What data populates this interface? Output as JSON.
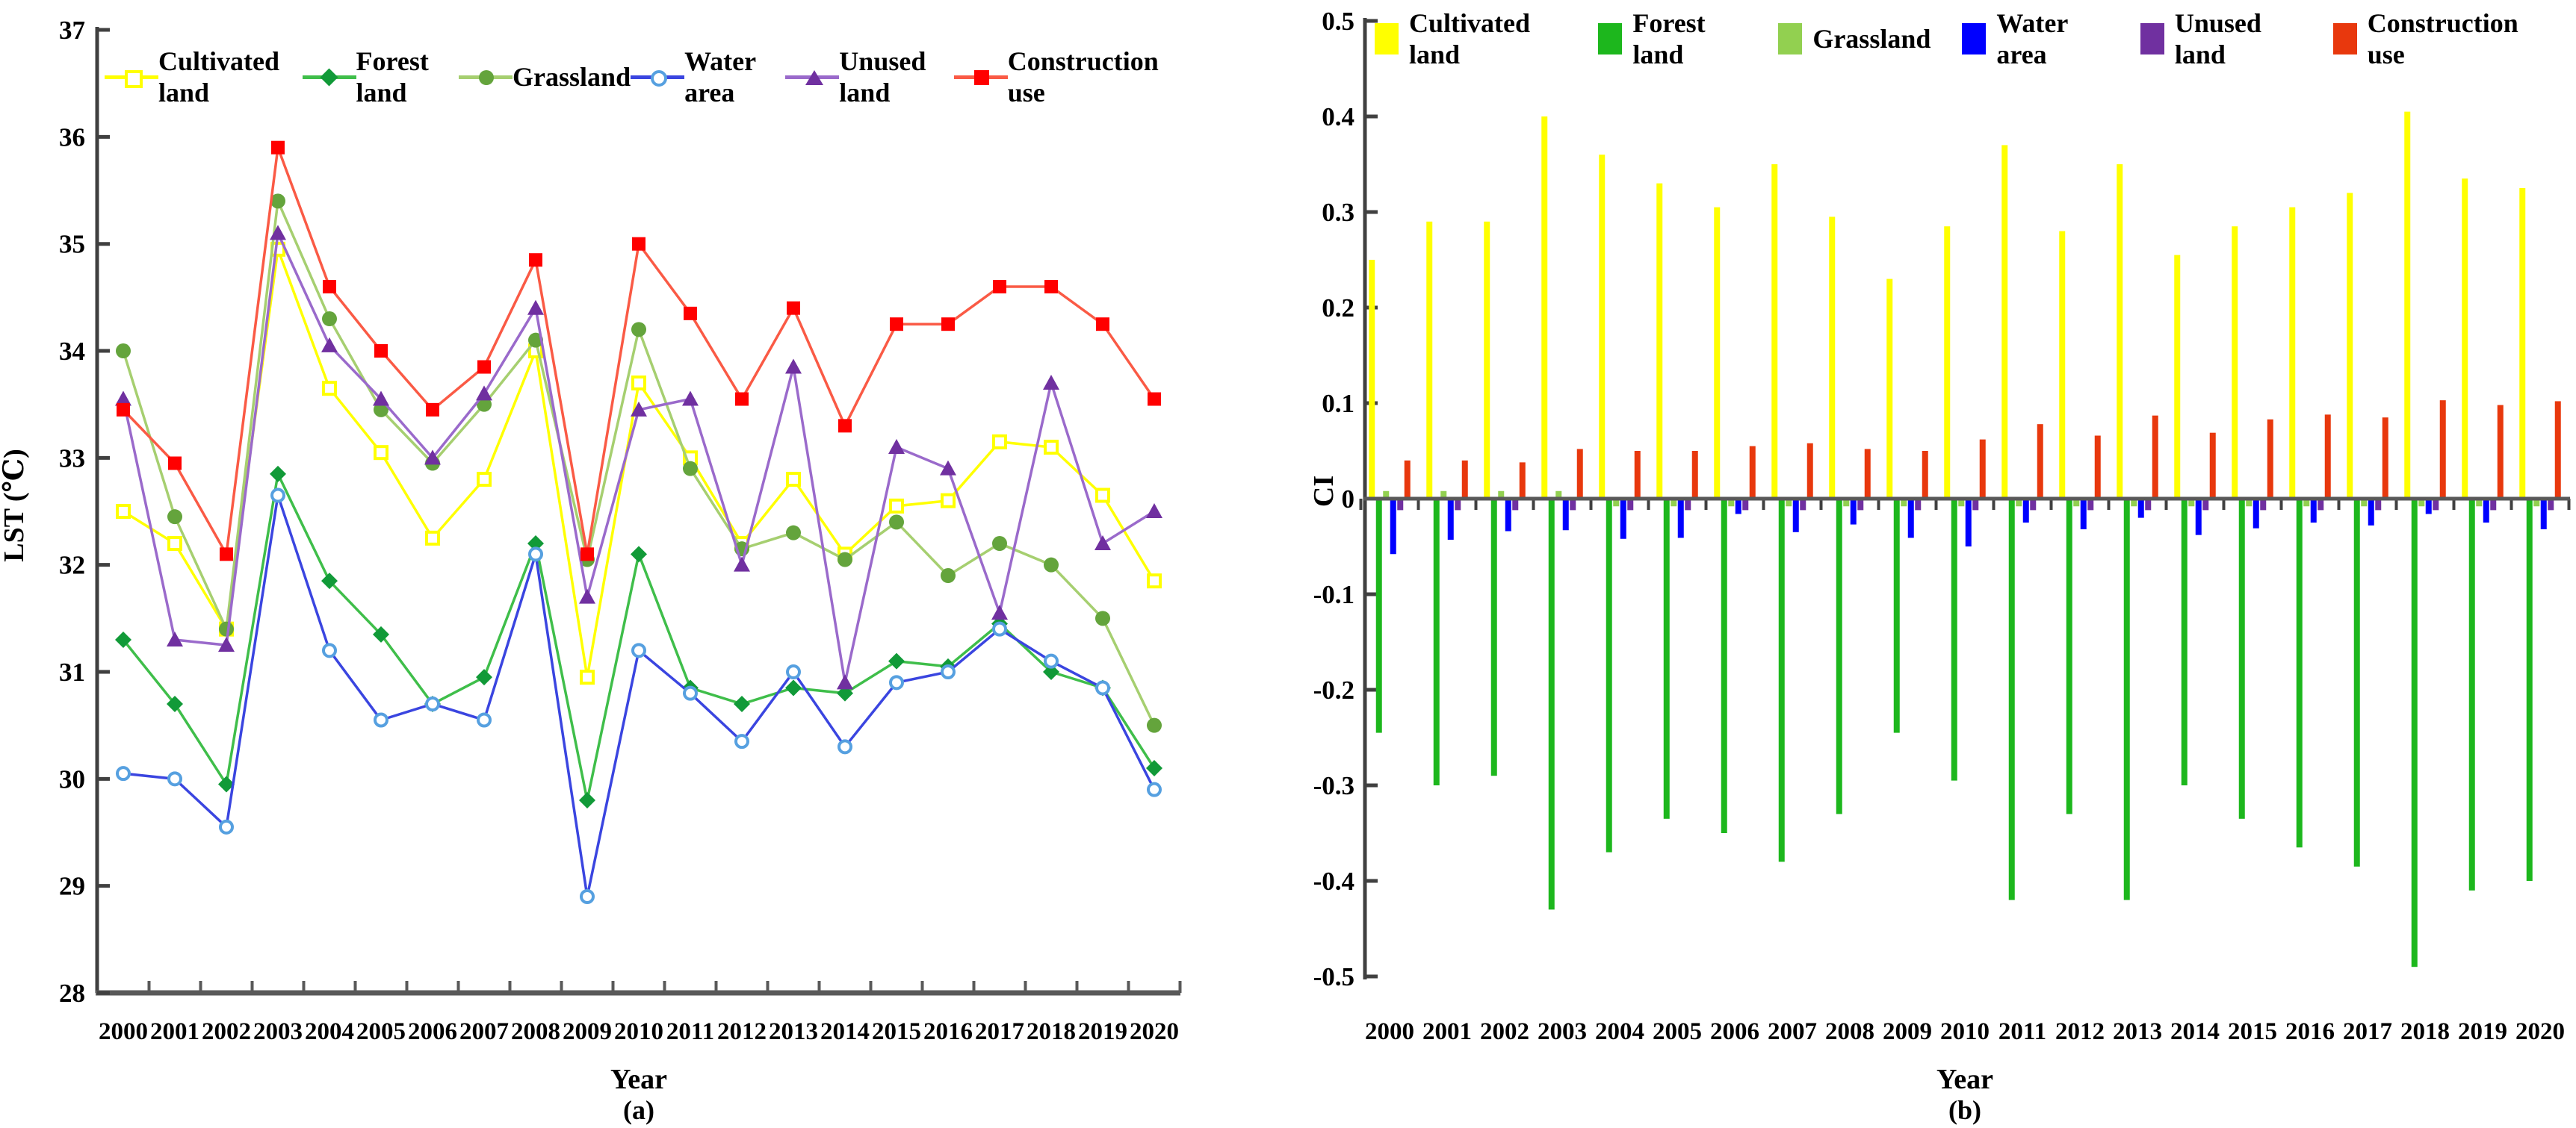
{
  "panels": {
    "a": {
      "ylabel": "LST (℃)",
      "xlabel": "Year",
      "caption": "(a)"
    },
    "b": {
      "ylabel": "CI",
      "xlabel": "Year",
      "caption": "(b)"
    }
  },
  "chart_data": [
    {
      "type": "line",
      "title": "",
      "xlabel": "Year",
      "ylabel": "LST (℃)",
      "caption": "(a)",
      "x": [
        2000,
        2001,
        2002,
        2003,
        2004,
        2005,
        2006,
        2007,
        2008,
        2009,
        2010,
        2011,
        2012,
        2013,
        2014,
        2015,
        2016,
        2017,
        2018,
        2019,
        2020
      ],
      "ylim": [
        28,
        37
      ],
      "yticks": [
        28,
        29,
        30,
        31,
        32,
        33,
        34,
        35,
        36,
        37
      ],
      "grid": false,
      "legend_position": "top",
      "series": [
        {
          "name": "Cultivated land",
          "marker": "open-square",
          "line_color": "#FFFF00",
          "marker_color": "#FFFF00",
          "values": [
            32.5,
            32.2,
            31.4,
            34.95,
            33.65,
            33.05,
            32.25,
            32.8,
            34.0,
            30.95,
            33.7,
            33.0,
            32.2,
            32.8,
            32.1,
            32.55,
            32.6,
            33.15,
            33.1,
            32.65,
            31.85
          ]
        },
        {
          "name": "Forest land",
          "marker": "diamond",
          "line_color": "#3FBE4A",
          "marker_color": "#119A38",
          "values": [
            31.3,
            30.7,
            29.95,
            32.85,
            31.85,
            31.35,
            30.7,
            30.95,
            32.2,
            29.8,
            32.1,
            30.85,
            30.7,
            30.85,
            30.8,
            31.1,
            31.05,
            31.45,
            31.0,
            30.85,
            30.1
          ]
        },
        {
          "name": "Grassland",
          "marker": "circle",
          "line_color": "#A6CF70",
          "marker_color": "#64A43C",
          "values": [
            34.0,
            32.45,
            31.4,
            35.4,
            34.3,
            33.45,
            32.95,
            33.5,
            34.1,
            32.05,
            34.2,
            32.9,
            32.15,
            32.3,
            32.05,
            32.4,
            31.9,
            32.2,
            32.0,
            31.5,
            30.5
          ]
        },
        {
          "name": "Water area",
          "marker": "open-circle",
          "line_color": "#3A45E0",
          "marker_color": "#56A0E0",
          "values": [
            30.05,
            30.0,
            29.55,
            32.65,
            31.2,
            30.55,
            30.7,
            30.55,
            32.1,
            28.9,
            31.2,
            30.8,
            30.35,
            31.0,
            30.3,
            30.9,
            31.0,
            31.4,
            31.1,
            30.85,
            29.9
          ]
        },
        {
          "name": "Unused land",
          "marker": "triangle",
          "line_color": "#9A6ACB",
          "marker_color": "#7030A0",
          "values": [
            33.55,
            31.3,
            31.25,
            35.1,
            34.05,
            33.55,
            33.0,
            33.6,
            34.4,
            31.7,
            33.45,
            33.55,
            32.0,
            33.85,
            30.9,
            33.1,
            32.9,
            31.55,
            33.7,
            32.2,
            32.5
          ]
        },
        {
          "name": "Construction use",
          "marker": "square",
          "line_color": "#FA5A45",
          "marker_color": "#FF0000",
          "values": [
            33.45,
            32.95,
            32.1,
            35.9,
            34.6,
            34.0,
            33.45,
            33.85,
            34.85,
            32.1,
            35.0,
            34.35,
            33.55,
            34.4,
            33.3,
            34.25,
            34.25,
            34.6,
            34.6,
            34.25,
            33.55
          ]
        }
      ]
    },
    {
      "type": "bar",
      "title": "",
      "xlabel": "Year",
      "ylabel": "CI",
      "caption": "(b)",
      "categories": [
        2000,
        2001,
        2002,
        2003,
        2004,
        2005,
        2006,
        2007,
        2008,
        2009,
        2010,
        2011,
        2012,
        2013,
        2014,
        2015,
        2016,
        2017,
        2018,
        2019,
        2020
      ],
      "ylim": [
        -0.5,
        0.5
      ],
      "yticks": [
        0.5,
        0.4,
        0.3,
        0.2,
        0.1,
        0,
        -0.1,
        -0.2,
        -0.3,
        -0.4,
        -0.5
      ],
      "ytick_labels": [
        "0.5",
        "0.4",
        "0.3",
        "0.2",
        "0.1",
        "0",
        "-0.1",
        "-0.2",
        "-0.3",
        "-0.4",
        "-0.5"
      ],
      "grid": false,
      "legend_position": "top",
      "series": [
        {
          "name": "Cultivated land",
          "color": "#FFFF00",
          "values": [
            0.25,
            0.29,
            0.29,
            0.4,
            0.36,
            0.33,
            0.305,
            0.35,
            0.295,
            0.23,
            0.285,
            0.37,
            0.28,
            0.35,
            0.255,
            0.285,
            0.305,
            0.32,
            0.405,
            0.335,
            0.325
          ]
        },
        {
          "name": "Forest land",
          "color": "#1DB71D",
          "values": [
            -0.245,
            -0.3,
            -0.29,
            -0.43,
            -0.37,
            -0.335,
            -0.35,
            -0.38,
            -0.33,
            -0.245,
            -0.295,
            -0.42,
            -0.33,
            -0.42,
            -0.3,
            -0.335,
            -0.365,
            -0.385,
            -0.49,
            -0.41,
            -0.4
          ]
        },
        {
          "name": "Grassland",
          "color": "#92D050",
          "values": [
            0.008,
            0.008,
            0.008,
            0.008,
            -0.008,
            -0.008,
            -0.008,
            -0.008,
            -0.008,
            -0.008,
            -0.008,
            -0.008,
            -0.008,
            -0.008,
            -0.008,
            -0.008,
            -0.008,
            -0.008,
            -0.008,
            -0.008,
            -0.008
          ]
        },
        {
          "name": "Water area",
          "color": "#0000FF",
          "values": [
            -0.058,
            -0.043,
            -0.034,
            -0.033,
            -0.042,
            -0.041,
            -0.016,
            -0.035,
            -0.027,
            -0.041,
            -0.05,
            -0.025,
            -0.032,
            -0.02,
            -0.038,
            -0.031,
            -0.025,
            -0.028,
            -0.016,
            -0.025,
            -0.032
          ]
        },
        {
          "name": "Unused land",
          "color": "#7030A0",
          "values": [
            -0.012,
            -0.012,
            -0.012,
            -0.012,
            -0.012,
            -0.012,
            -0.012,
            -0.012,
            -0.012,
            -0.012,
            -0.012,
            -0.012,
            -0.012,
            -0.012,
            -0.012,
            -0.012,
            -0.012,
            -0.012,
            -0.012,
            -0.012,
            -0.012
          ]
        },
        {
          "name": "Construction use",
          "color": "#E8380D",
          "values": [
            0.04,
            0.04,
            0.038,
            0.052,
            0.05,
            0.05,
            0.055,
            0.058,
            0.052,
            0.05,
            0.062,
            0.078,
            0.066,
            0.087,
            0.069,
            0.083,
            0.088,
            0.085,
            0.103,
            0.098,
            0.102
          ]
        }
      ]
    }
  ]
}
